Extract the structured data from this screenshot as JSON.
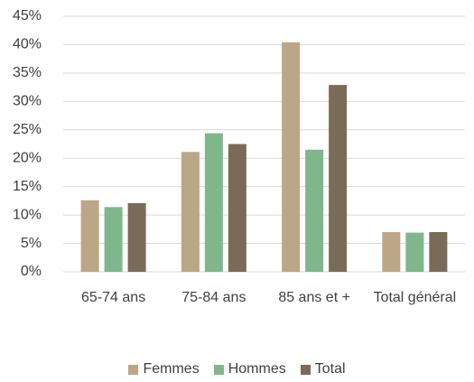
{
  "chart_data": {
    "type": "bar",
    "categories": [
      "65-74 ans",
      "75-84 ans",
      "85 ans et +",
      "Total général"
    ],
    "series": [
      {
        "name": "Femmes",
        "color": "#bba685",
        "values": [
          12.6,
          21.1,
          40.4,
          7.0
        ]
      },
      {
        "name": "Hommes",
        "color": "#80b68b",
        "values": [
          11.4,
          24.4,
          21.5,
          6.9
        ]
      },
      {
        "name": "Total",
        "color": "#7a6b58",
        "values": [
          12.1,
          22.5,
          32.9,
          7.0
        ]
      }
    ],
    "ylim": [
      0,
      45
    ],
    "yticks": [
      {
        "value": 0,
        "label": "0%"
      },
      {
        "value": 5,
        "label": "5%"
      },
      {
        "value": 10,
        "label": "10%"
      },
      {
        "value": 15,
        "label": "15%"
      },
      {
        "value": 20,
        "label": "20%"
      },
      {
        "value": 25,
        "label": "25%"
      },
      {
        "value": 30,
        "label": "30%"
      },
      {
        "value": 35,
        "label": "35%"
      },
      {
        "value": 40,
        "label": "40%"
      },
      {
        "value": 45,
        "label": "45%"
      }
    ],
    "grid": true,
    "legend": "bottom"
  }
}
